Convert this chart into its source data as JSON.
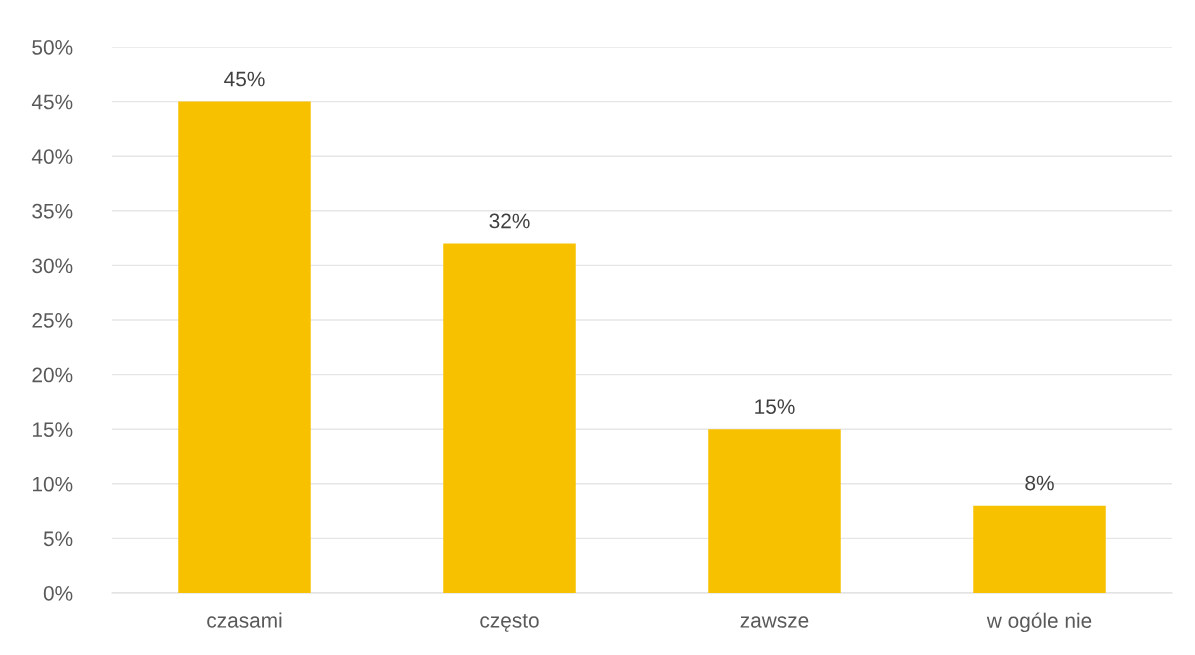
{
  "chart_data": {
    "type": "bar",
    "categories": [
      "czasami",
      "często",
      "zawsze",
      "w ogóle nie"
    ],
    "values": [
      45,
      32,
      15,
      8
    ],
    "value_labels": [
      "45%",
      "32%",
      "15%",
      "8%"
    ],
    "color": "#f7c100",
    "ylim": [
      0,
      50
    ],
    "yticks": [
      {
        "value": 0,
        "label": "0%"
      },
      {
        "value": 5,
        "label": "5%"
      },
      {
        "value": 10,
        "label": "10%"
      },
      {
        "value": 15,
        "label": "15%"
      },
      {
        "value": 20,
        "label": "20%"
      },
      {
        "value": 25,
        "label": "25%"
      },
      {
        "value": 30,
        "label": "30%"
      },
      {
        "value": 35,
        "label": "35%"
      },
      {
        "value": 40,
        "label": "40%"
      },
      {
        "value": 45,
        "label": "45%"
      },
      {
        "value": 50,
        "label": "50%"
      }
    ],
    "grid": "y"
  }
}
